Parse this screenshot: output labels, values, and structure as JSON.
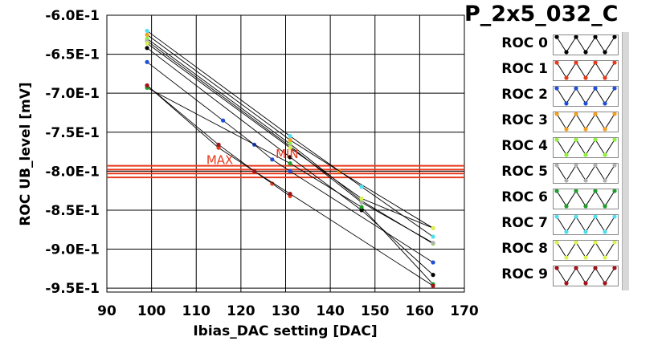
{
  "chart_data": {
    "type": "line",
    "title": "P_2x5_032_C",
    "xlabel": "Ibias_DAC setting [DAC]",
    "ylabel": "ROC UB_level [mV]",
    "xlim": [
      90,
      170
    ],
    "ylim": [
      -0.955,
      -0.6
    ],
    "x_ticks": [
      "90",
      "100",
      "110",
      "120",
      "130",
      "140",
      "150",
      "160",
      "170"
    ],
    "y_ticks": [
      "-6.0E-1",
      "-6.5E-1",
      "-7.0E-1",
      "-7.5E-1",
      "-8.0E-1",
      "-8.5E-1",
      "-9.0E-1",
      "-9.5E-1"
    ],
    "y_tick_values": [
      -0.6,
      -0.65,
      -0.7,
      -0.75,
      -0.8,
      -0.85,
      -0.9,
      -0.95
    ],
    "grid": true,
    "hlines": [
      {
        "y": -0.793,
        "color": "#e8391b"
      },
      {
        "y": -0.798,
        "color": "#e8391b"
      },
      {
        "y": -0.803,
        "color": "#e8391b"
      },
      {
        "y": -0.808,
        "color": "#e8391b"
      }
    ],
    "annotations": [
      {
        "text": "MAX",
        "x": 115.5,
        "y": -0.791,
        "color": "#e8391b"
      },
      {
        "text": "MIN",
        "x": 131,
        "y": -0.783,
        "color": "#e8391b"
      }
    ],
    "series": [
      {
        "name": "ROC 0",
        "color": "#000000",
        "x": [
          99,
          131,
          147,
          163
        ],
        "y": [
          -0.642,
          -0.782,
          -0.85,
          -0.933
        ]
      },
      {
        "name": "ROC 1",
        "color": "#e8391b",
        "x": [
          99,
          115,
          123,
          127,
          131
        ],
        "y": [
          -0.69,
          -0.77,
          -0.8,
          -0.816,
          -0.832
        ]
      },
      {
        "name": "ROC 2",
        "color": "#1f4fd8",
        "x": [
          99,
          116,
          123,
          127,
          131,
          163
        ],
        "y": [
          -0.66,
          -0.735,
          -0.766,
          -0.785,
          -0.8,
          -0.917
        ]
      },
      {
        "name": "ROC 3",
        "color": "#f2a01e",
        "x": [
          99,
          131,
          142,
          163
        ],
        "y": [
          -0.625,
          -0.76,
          -0.8,
          -0.873
        ]
      },
      {
        "name": "ROC 4",
        "color": "#8ff23a",
        "x": [
          99,
          131,
          147,
          163
        ],
        "y": [
          -0.63,
          -0.765,
          -0.838,
          -0.893
        ]
      },
      {
        "name": "ROC 5",
        "color": "#b0b0b0",
        "x": [
          99,
          131,
          147,
          163
        ],
        "y": [
          -0.633,
          -0.768,
          -0.84,
          -0.892
        ]
      },
      {
        "name": "ROC 6",
        "color": "#1f9e2a",
        "x": [
          99,
          131,
          147,
          163
        ],
        "y": [
          -0.693,
          -0.79,
          -0.846,
          -0.945
        ]
      },
      {
        "name": "ROC 7",
        "color": "#4fe0f0",
        "x": [
          99,
          131,
          147,
          163
        ],
        "y": [
          -0.62,
          -0.755,
          -0.82,
          -0.884
        ]
      },
      {
        "name": "ROC 8",
        "color": "#d8f24e",
        "x": [
          99,
          131,
          147,
          163
        ],
        "y": [
          -0.636,
          -0.77,
          -0.835,
          -0.873
        ]
      },
      {
        "name": "ROC 9",
        "color": "#a1121a",
        "x": [
          99,
          115,
          123,
          131,
          163
        ],
        "y": [
          -0.69,
          -0.766,
          -0.8,
          -0.829,
          -0.947
        ]
      }
    ]
  },
  "legend": {
    "items": [
      "ROC 0",
      "ROC 1",
      "ROC 2",
      "ROC 3",
      "ROC 4",
      "ROC 5",
      "ROC 6",
      "ROC 7",
      "ROC 8",
      "ROC 9"
    ]
  }
}
